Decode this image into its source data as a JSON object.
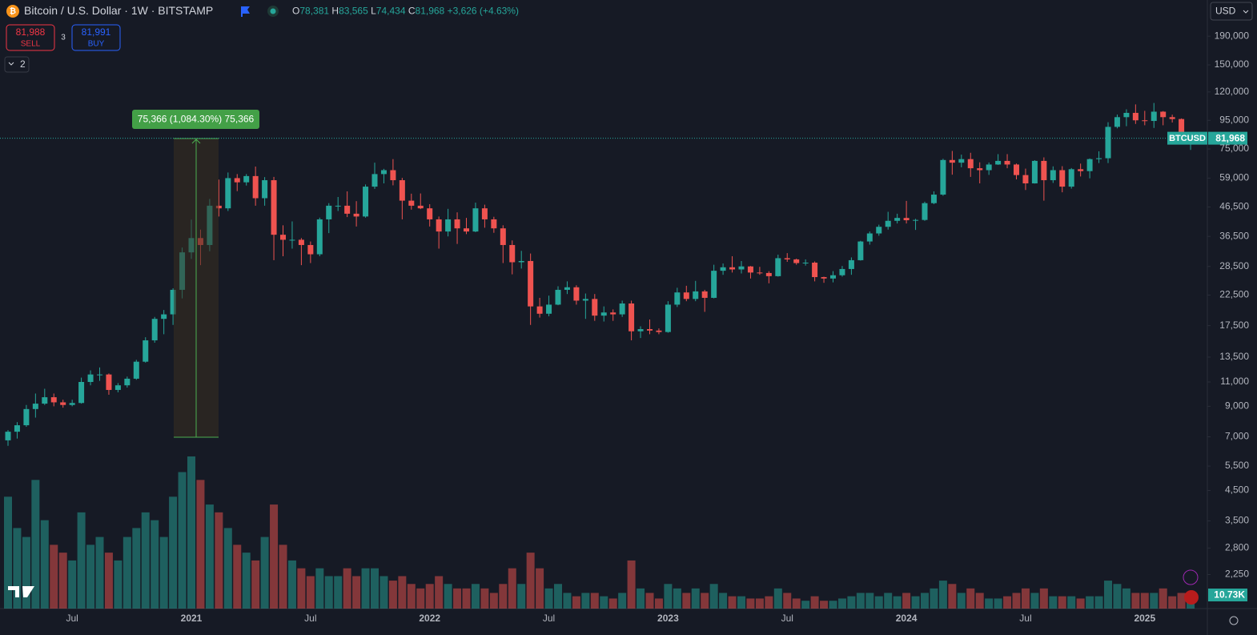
{
  "header": {
    "title": "Bitcoin / U.S. Dollar · 1W · BITSTAMP",
    "ohlc": [
      {
        "key": "O",
        "value": "78,381"
      },
      {
        "key": "H",
        "value": "83,565"
      },
      {
        "key": "L",
        "value": "74,434"
      },
      {
        "key": "C",
        "value": "81,968"
      }
    ],
    "change": "+3,626 (+4.63%)"
  },
  "trade": {
    "sell_price": "81,988",
    "sell": "SELL",
    "spread": "3",
    "buy_price": "81,991",
    "buy": "BUY"
  },
  "indicators_toggle": "2",
  "currency": "USD",
  "chart_data": {
    "type": "candlestick",
    "symbol": "BTCUSD",
    "log_scale": true,
    "grid": false,
    "up_color": "#26a69a",
    "down_color": "#ef5350",
    "measure_label": "75,366 (1,084.30%) 75,366",
    "last_price_label": "81,968",
    "categories": [
      null,
      null,
      null,
      null,
      null,
      null,
      null,
      "Jul",
      null,
      null,
      null,
      null,
      null,
      null,
      null,
      null,
      null,
      null,
      null,
      null,
      "2021",
      null,
      null,
      null,
      null,
      null,
      null,
      null,
      null,
      null,
      null,
      null,
      null,
      "Jul",
      null,
      null,
      null,
      null,
      null,
      null,
      null,
      null,
      null,
      null,
      null,
      null,
      "2022",
      null,
      null,
      null,
      null,
      null,
      null,
      null,
      null,
      null,
      null,
      null,
      null,
      "Jul",
      null,
      null,
      null,
      null,
      null,
      null,
      null,
      null,
      null,
      null,
      null,
      null,
      "2023",
      null,
      null,
      null,
      null,
      null,
      null,
      null,
      null,
      null,
      null,
      null,
      null,
      "Jul",
      null,
      null,
      null,
      null,
      null,
      null,
      null,
      null,
      null,
      null,
      null,
      null,
      "2024",
      null,
      null,
      null,
      null,
      null,
      null,
      null,
      null,
      null,
      null,
      null,
      null,
      "Jul",
      null,
      null,
      null,
      null,
      null,
      null,
      null,
      null,
      null,
      null,
      null,
      null,
      "2025",
      null,
      null,
      null,
      null,
      null
    ],
    "candles": [
      [
        6800,
        7400,
        6500,
        7300
      ],
      [
        7300,
        7900,
        6900,
        7700
      ],
      [
        7700,
        9100,
        7600,
        8800
      ],
      [
        8800,
        10000,
        8200,
        9200
      ],
      [
        9200,
        10400,
        9100,
        9700
      ],
      [
        9700,
        10000,
        9000,
        9300
      ],
      [
        9300,
        9500,
        8900,
        9100
      ],
      [
        9100,
        9500,
        9000,
        9250
      ],
      [
        9250,
        11400,
        9200,
        11000
      ],
      [
        11000,
        12100,
        10700,
        11700
      ],
      [
        11700,
        12400,
        11100,
        11700
      ],
      [
        11700,
        11800,
        9900,
        10300
      ],
      [
        10300,
        10900,
        10100,
        10700
      ],
      [
        10700,
        11500,
        10500,
        11300
      ],
      [
        11300,
        13200,
        11200,
        13000
      ],
      [
        13000,
        15900,
        12900,
        15500
      ],
      [
        15500,
        18800,
        15200,
        18500
      ],
      [
        18500,
        19900,
        16300,
        19200
      ],
      [
        19200,
        23800,
        17600,
        23500
      ],
      [
        23500,
        33300,
        21900,
        32000
      ],
      [
        32000,
        41900,
        30300,
        36000
      ],
      [
        36000,
        38600,
        28800,
        34000
      ],
      [
        34000,
        49700,
        32300,
        47000
      ],
      [
        47000,
        58300,
        43000,
        46000
      ],
      [
        46000,
        61800,
        45000,
        59000
      ],
      [
        59000,
        61000,
        53000,
        57000
      ],
      [
        57000,
        61000,
        55500,
        60000
      ],
      [
        60000,
        64900,
        47000,
        50000
      ],
      [
        50000,
        59500,
        47000,
        58000
      ],
      [
        58000,
        59600,
        30000,
        37000
      ],
      [
        37000,
        40000,
        31000,
        35500
      ],
      [
        35500,
        41300,
        33000,
        35500
      ],
      [
        35500,
        36000,
        28800,
        34000
      ],
      [
        34000,
        35000,
        29300,
        31500
      ],
      [
        31500,
        42600,
        31000,
        42000
      ],
      [
        42000,
        48000,
        37500,
        47000
      ],
      [
        47000,
        50500,
        45000,
        47000
      ],
      [
        47000,
        52900,
        42800,
        44000
      ],
      [
        44000,
        48800,
        39600,
        43000
      ],
      [
        43000,
        56000,
        42600,
        55000
      ],
      [
        55000,
        67000,
        54000,
        61000
      ],
      [
        61000,
        63700,
        56500,
        63000
      ],
      [
        63000,
        69000,
        55600,
        58000
      ],
      [
        58000,
        59100,
        42000,
        49000
      ],
      [
        49000,
        51900,
        45500,
        47000
      ],
      [
        47000,
        52000,
        45700,
        46000
      ],
      [
        46000,
        47600,
        39600,
        42000
      ],
      [
        42000,
        43000,
        33000,
        38000
      ],
      [
        38000,
        45800,
        36500,
        42000
      ],
      [
        42000,
        44500,
        34300,
        39000
      ],
      [
        39000,
        42500,
        37200,
        38000
      ],
      [
        38000,
        48200,
        37800,
        46000
      ],
      [
        46000,
        47400,
        39200,
        42000
      ],
      [
        42000,
        42900,
        37600,
        39000
      ],
      [
        39000,
        40000,
        29300,
        34000
      ],
      [
        34000,
        35300,
        26700,
        29500
      ],
      [
        29500,
        32400,
        28000,
        29800
      ],
      [
        29800,
        31700,
        17600,
        20500
      ],
      [
        20500,
        22000,
        18700,
        19300
      ],
      [
        19300,
        22400,
        18900,
        20800
      ],
      [
        20800,
        24200,
        20700,
        23500
      ],
      [
        23500,
        25200,
        22700,
        24000
      ],
      [
        24000,
        24400,
        20800,
        21500
      ],
      [
        21500,
        22800,
        18500,
        21800
      ],
      [
        21800,
        22700,
        18200,
        19000
      ],
      [
        19000,
        20500,
        18100,
        19500
      ],
      [
        19500,
        20000,
        18200,
        19200
      ],
      [
        19200,
        21500,
        18800,
        21000
      ],
      [
        21000,
        21500,
        15500,
        16700
      ],
      [
        16700,
        17400,
        15800,
        17000
      ],
      [
        17000,
        18400,
        16300,
        16800
      ],
      [
        16800,
        17100,
        16300,
        16600
      ],
      [
        16600,
        21400,
        16500,
        20800
      ],
      [
        20800,
        23900,
        20400,
        23000
      ],
      [
        23000,
        24300,
        21400,
        21800
      ],
      [
        21800,
        25300,
        21400,
        23200
      ],
      [
        23200,
        23500,
        19600,
        22000
      ],
      [
        22000,
        28900,
        21900,
        27500
      ],
      [
        27500,
        29200,
        26600,
        28300
      ],
      [
        28300,
        31000,
        27100,
        27800
      ],
      [
        27800,
        29800,
        26900,
        28500
      ],
      [
        28500,
        28600,
        25800,
        27100
      ],
      [
        27100,
        28400,
        26600,
        27000
      ],
      [
        27000,
        27400,
        24800,
        26300
      ],
      [
        26300,
        31400,
        26200,
        30500
      ],
      [
        30500,
        31800,
        29600,
        30200
      ],
      [
        30200,
        30400,
        28900,
        29300
      ],
      [
        29300,
        30200,
        28700,
        29400
      ],
      [
        29400,
        29700,
        25200,
        26100
      ],
      [
        26100,
        26200,
        24900,
        25800
      ],
      [
        25800,
        27400,
        25000,
        26500
      ],
      [
        26500,
        28600,
        26200,
        27900
      ],
      [
        27900,
        30700,
        26600,
        30000
      ],
      [
        30000,
        35200,
        29900,
        35000
      ],
      [
        35000,
        38000,
        34100,
        37400
      ],
      [
        37400,
        40200,
        36700,
        39500
      ],
      [
        39500,
        44700,
        38600,
        41500
      ],
      [
        41500,
        44000,
        40600,
        42500
      ],
      [
        42500,
        48900,
        40600,
        41700
      ],
      [
        41700,
        42200,
        38500,
        41800
      ],
      [
        41800,
        48600,
        41500,
        48000
      ],
      [
        48000,
        52900,
        47600,
        51500
      ],
      [
        51500,
        69200,
        51000,
        68500
      ],
      [
        68500,
        73800,
        60700,
        67000
      ],
      [
        67000,
        71600,
        64500,
        69000
      ],
      [
        69000,
        72700,
        59600,
        64000
      ],
      [
        64000,
        67200,
        56500,
        63000
      ],
      [
        63000,
        67100,
        60600,
        66000
      ],
      [
        66000,
        71900,
        65800,
        68000
      ],
      [
        68000,
        71900,
        64000,
        66000
      ],
      [
        66000,
        66500,
        58400,
        60500
      ],
      [
        60500,
        63800,
        53500,
        56500
      ],
      [
        56500,
        68400,
        56400,
        68000
      ],
      [
        68000,
        70000,
        49000,
        58000
      ],
      [
        58000,
        65000,
        56700,
        63000
      ],
      [
        63000,
        65100,
        52500,
        55000
      ],
      [
        55000,
        64100,
        54100,
        63500
      ],
      [
        63500,
        66500,
        59800,
        62500
      ],
      [
        62500,
        69400,
        58900,
        69000
      ],
      [
        69000,
        73600,
        66800,
        69500
      ],
      [
        69500,
        93500,
        66800,
        90000
      ],
      [
        90000,
        99600,
        88900,
        97500
      ],
      [
        97500,
        104000,
        90500,
        101000
      ],
      [
        101000,
        108300,
        92200,
        95000
      ],
      [
        95000,
        102700,
        91200,
        94500
      ],
      [
        94500,
        109600,
        89200,
        102000
      ],
      [
        102000,
        102500,
        91200,
        97500
      ],
      [
        97500,
        99500,
        93300,
        96000
      ],
      [
        96000,
        96500,
        78200,
        80000
      ],
      [
        78381,
        83565,
        74434,
        81968
      ]
    ],
    "volume": {
      "values": [
        100000,
        72000,
        64000,
        115000,
        79000,
        57000,
        50000,
        43000,
        86000,
        57000,
        64000,
        50000,
        43000,
        64000,
        72000,
        86000,
        79000,
        64000,
        100000,
        122000,
        136000,
        115000,
        93000,
        86000,
        72000,
        57000,
        50000,
        43000,
        64000,
        93000,
        57000,
        43000,
        36000,
        29000,
        36000,
        29000,
        29000,
        36000,
        29000,
        36000,
        36000,
        29000,
        25000,
        29000,
        22000,
        18000,
        22000,
        29000,
        22000,
        18000,
        18000,
        22000,
        18000,
        14000,
        22000,
        36000,
        22000,
        50000,
        36000,
        18000,
        22000,
        14000,
        11000,
        14000,
        14000,
        11000,
        9000,
        14000,
        43000,
        18000,
        14000,
        9000,
        22000,
        18000,
        14000,
        18000,
        14000,
        22000,
        14000,
        11000,
        11000,
        9000,
        9000,
        11000,
        18000,
        14000,
        9000,
        7000,
        11000,
        7000,
        7000,
        9000,
        11000,
        14000,
        14000,
        11000,
        14000,
        11000,
        14000,
        11000,
        14000,
        18000,
        25000,
        22000,
        14000,
        18000,
        14000,
        9000,
        9000,
        11000,
        14000,
        18000,
        14000,
        18000,
        11000,
        11000,
        11000,
        9000,
        11000,
        11000,
        25000,
        22000,
        18000,
        14000,
        14000,
        14000,
        18000,
        11000,
        14000,
        10730
      ],
      "last_label": "10.73K"
    },
    "ylim": [
      1700,
      256000
    ],
    "yticks": [
      {
        "value": 190000,
        "label": "190,000"
      },
      {
        "value": 150000,
        "label": "150,000"
      },
      {
        "value": 120000,
        "label": "120,000"
      },
      {
        "value": 95000,
        "label": "95,000"
      },
      {
        "value": 75000,
        "label": "75,000"
      },
      {
        "value": 59000,
        "label": "59,000"
      },
      {
        "value": 46500,
        "label": "46,500"
      },
      {
        "value": 36500,
        "label": "36,500"
      },
      {
        "value": 28500,
        "label": "28,500"
      },
      {
        "value": 22500,
        "label": "22,500"
      },
      {
        "value": 17500,
        "label": "17,500"
      },
      {
        "value": 13500,
        "label": "13,500"
      },
      {
        "value": 11000,
        "label": "11,000"
      },
      {
        "value": 9000,
        "label": "9,000"
      },
      {
        "value": 7000,
        "label": "7,000"
      },
      {
        "value": 5500,
        "label": "5,500"
      },
      {
        "value": 4500,
        "label": "4,500"
      },
      {
        "value": 3500,
        "label": "3,500"
      },
      {
        "value": 2800,
        "label": "2,800"
      },
      {
        "value": 2250,
        "label": "2,250"
      }
    ]
  }
}
